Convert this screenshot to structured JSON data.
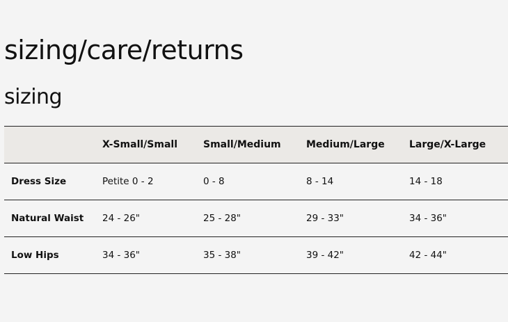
{
  "page_title": "sizing/care/returns",
  "section_title": "sizing",
  "table": {
    "headers": [
      "",
      "X-Small/Small",
      "Small/Medium",
      "Medium/Large",
      "Large/X-Large"
    ],
    "rows": [
      {
        "label": "Dress Size",
        "values": [
          "Petite 0 - 2",
          "0 - 8",
          "8 - 14",
          "14 - 18"
        ]
      },
      {
        "label": "Natural Waist",
        "values": [
          "24 - 26\"",
          "25 - 28\"",
          "29 - 33\"",
          "34 - 36\""
        ]
      },
      {
        "label": "Low Hips",
        "values": [
          "34 - 36\"",
          "35 - 38\"",
          "39 - 42\"",
          "42 - 44\""
        ]
      }
    ]
  }
}
